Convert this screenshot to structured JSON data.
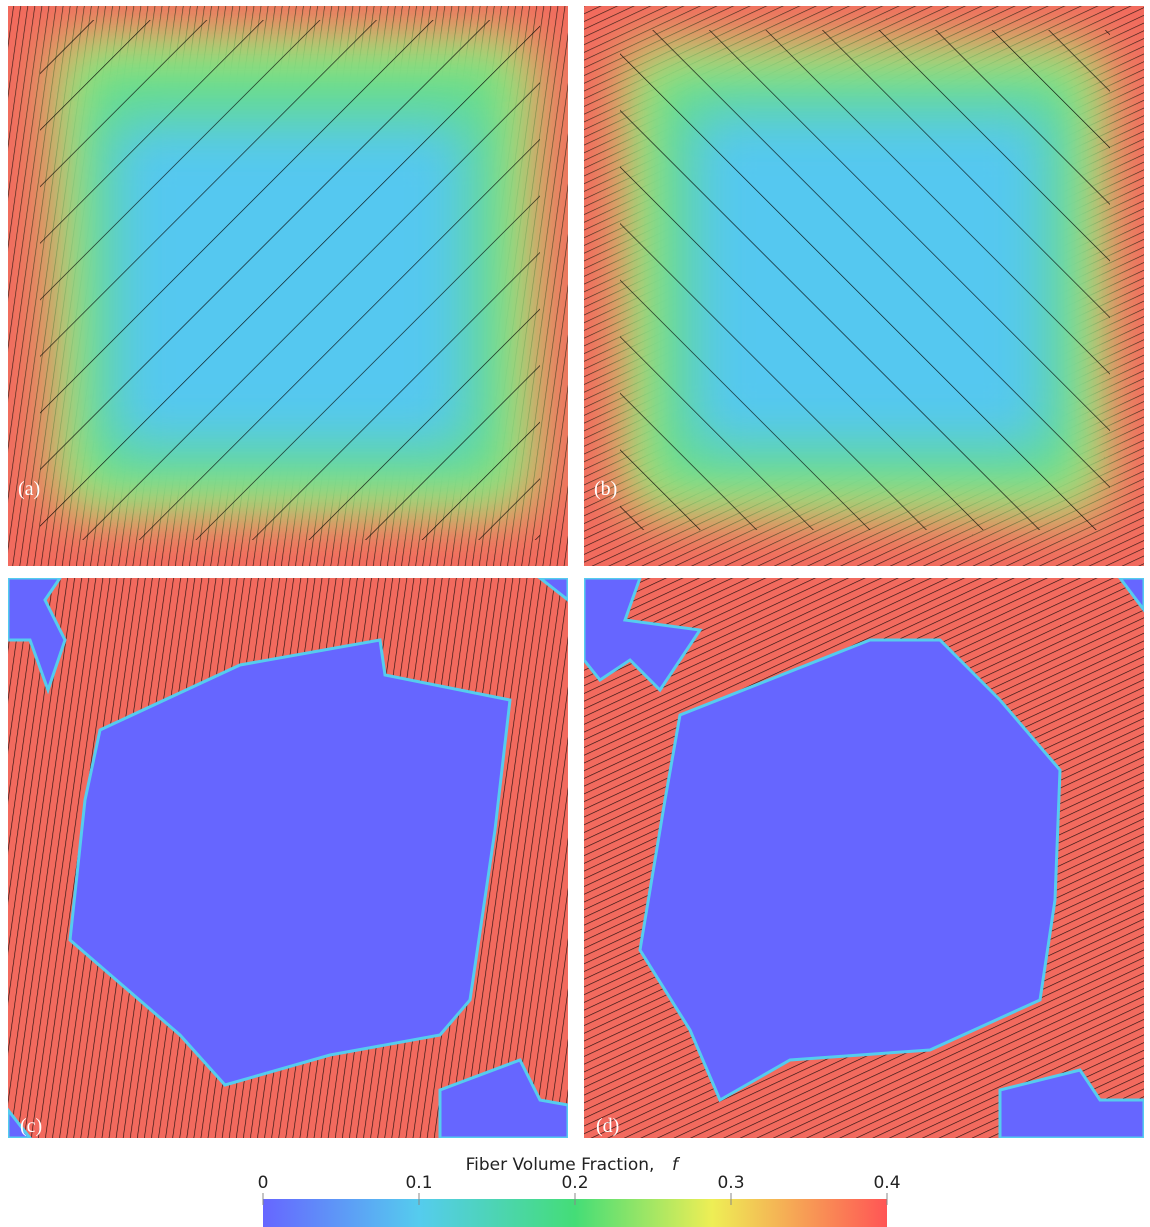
{
  "panels": [
    {
      "label": "(a)"
    },
    {
      "label": "(b)"
    },
    {
      "label": "(c)"
    },
    {
      "label": "(d)"
    }
  ],
  "colorbar": {
    "title": "Fiber Volume Fraction,",
    "symbol": "f",
    "lim": [
      0,
      0.4
    ],
    "ticks": [
      0,
      0.1,
      0.2,
      0.3,
      0.4
    ]
  }
}
